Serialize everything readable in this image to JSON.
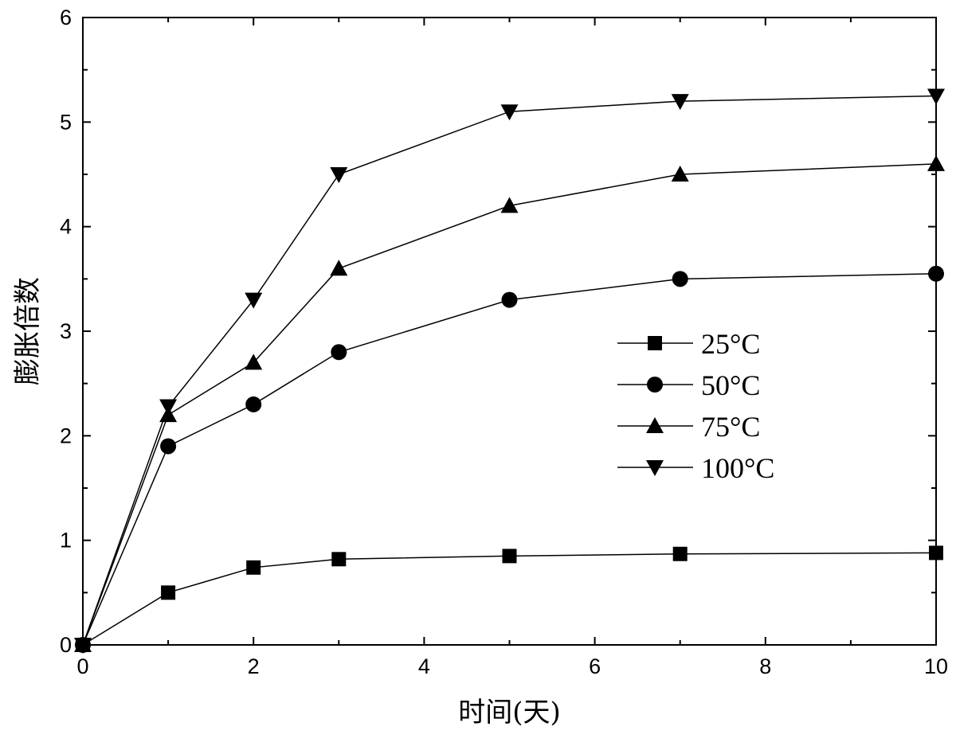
{
  "chart_data": {
    "type": "line",
    "title": "",
    "xlabel": "时间(天)",
    "ylabel": "膨胀倍数",
    "xlim": [
      0,
      10
    ],
    "ylim": [
      0,
      6
    ],
    "x_major_ticks": [
      0,
      2,
      4,
      6,
      8,
      10
    ],
    "x_minor_ticks": [
      1,
      3,
      5,
      7,
      9
    ],
    "y_major_ticks": [
      0,
      1,
      2,
      3,
      4,
      5,
      6
    ],
    "y_minor_ticks": [
      0.5,
      1.5,
      2.5,
      3.5,
      4.5,
      5.5
    ],
    "x_tick_labels": [
      "0",
      "2",
      "4",
      "6",
      "8",
      "10"
    ],
    "y_tick_labels": [
      "0",
      "1",
      "2",
      "3",
      "4",
      "5",
      "6"
    ],
    "grid": false,
    "legend_position": "center-right",
    "line_color": "#000000",
    "x": [
      0,
      1,
      2,
      3,
      5,
      7,
      10
    ],
    "series": [
      {
        "name": "25°C",
        "marker": "square",
        "values": [
          0,
          0.5,
          0.74,
          0.82,
          0.85,
          0.87,
          0.88
        ]
      },
      {
        "name": "50°C",
        "marker": "circle",
        "values": [
          0,
          1.9,
          2.3,
          2.8,
          3.3,
          3.5,
          3.55
        ]
      },
      {
        "name": "75°C",
        "marker": "triangle-up",
        "values": [
          0,
          2.2,
          2.7,
          3.6,
          4.2,
          4.5,
          4.6
        ]
      },
      {
        "name": "100°C",
        "marker": "triangle-down",
        "values": [
          0,
          2.28,
          3.3,
          4.5,
          5.1,
          5.2,
          5.25
        ]
      }
    ]
  }
}
